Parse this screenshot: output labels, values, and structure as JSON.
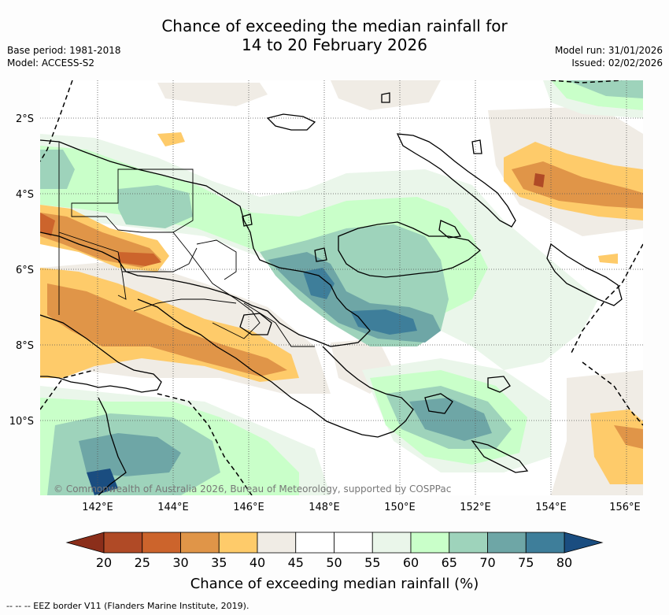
{
  "title_line1": "Chance of exceeding the median rainfall for",
  "title_line2": "14 to 20 February 2026",
  "base_period": "Base period: 1981-2018",
  "model": "Model: ACCESS-S2",
  "model_run": "Model run: 31/01/2026",
  "issued": "Issued: 02/02/2026",
  "copyright": "© Commonwealth of Australia 2026, Bureau of Meteorology, supported by COSPPac",
  "lat_labels": [
    "2°S",
    "4°S",
    "6°S",
    "8°S",
    "10°S"
  ],
  "lon_labels": [
    "142°E",
    "144°E",
    "146°E",
    "148°E",
    "150°E",
    "152°E",
    "154°E",
    "156°E"
  ],
  "colorbar": {
    "title": "Chance of exceeding median rainfall (%)",
    "ticks": [
      "20",
      "25",
      "30",
      "35",
      "40",
      "45",
      "50",
      "55",
      "60",
      "65",
      "70",
      "75",
      "80"
    ],
    "colors": [
      "#b04a26",
      "#cc642c",
      "#e09548",
      "#fecb6a",
      "#f0ece5",
      "#ffffff",
      "#ffffff",
      "#eaf6ea",
      "#c9ffc9",
      "#9ed3bb",
      "#6ea6a6",
      "#3e7e9a"
    ],
    "under_color": "#8b2e1a",
    "over_color": "#1a4d80"
  },
  "footnote": "-- -- -- EEZ border V11 (Flanders Marine Institute, 2019)."
}
